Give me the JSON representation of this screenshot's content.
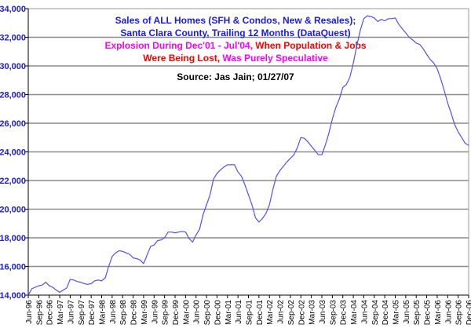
{
  "chart_data": {
    "type": "line",
    "title_lines": [
      [
        {
          "text": "Sales of ALL Homes (SFH & Condos, New & Resales);",
          "color": "#1a1ae6"
        }
      ],
      [
        {
          "text": "Santa Clara County, Trailing 12 Months (DataQuest)",
          "color": "#1a1ae6"
        }
      ],
      [
        {
          "text": "Explosion During Dec'01 - Jul'04, ",
          "color": "#ff00ff"
        },
        {
          "text": "When Population & Jobs",
          "color": "#ff0000"
        }
      ],
      [
        {
          "text": "Were Being Lost, ",
          "color": "#ff0000"
        },
        {
          "text": "Was Purely Speculative",
          "color": "#ff00ff"
        }
      ],
      [
        {
          "text": "Source: Jas Jain; 01/27/07",
          "color": "#000000"
        }
      ]
    ],
    "xlabel": "",
    "ylabel": "",
    "ylim": [
      14000,
      34000
    ],
    "y_ticks": [
      "14,000",
      "16,000",
      "18,000",
      "20,000",
      "22,000",
      "24,000",
      "26,000",
      "28,000",
      "30,000",
      "32,000",
      "34,000"
    ],
    "x_tick_labels": [
      "Jun-96",
      "Sep-96",
      "Dec-96",
      "Mar-97",
      "Jun-97",
      "Sep-97",
      "Dec-97",
      "Mar-98",
      "Jun-98",
      "Sep-98",
      "Dec-98",
      "Mar-99",
      "Jun-99",
      "Sep-99",
      "Dec-99",
      "Mar-00",
      "Jun-00",
      "Sep-00",
      "Dec-00",
      "Mar-01",
      "Jun-01",
      "Sep-01",
      "Dec-01",
      "Mar-02",
      "Jun-02",
      "Sep-02",
      "Dec-02",
      "Mar-03",
      "Jun-03",
      "Sep-03",
      "Dec-03",
      "Mar-04",
      "Jun-04",
      "Sep-04",
      "Dec-04",
      "Mar-05",
      "Jun-05",
      "Sep-05",
      "Dec-05",
      "Mar-06",
      "Jun-06",
      "Sep-06",
      "Dec-06"
    ],
    "grid": "horizontal",
    "legend": "none",
    "line_color": "#5050ff",
    "series": [
      {
        "x": [
          "Jun-96",
          "Jul-96",
          "Aug-96",
          "Sep-96",
          "Oct-96",
          "Nov-96",
          "Dec-96",
          "Jan-97",
          "Feb-97",
          "Mar-97",
          "Apr-97",
          "May-97",
          "Jun-97",
          "Jul-97",
          "Aug-97",
          "Sep-97",
          "Oct-97",
          "Nov-97",
          "Dec-97",
          "Jan-98",
          "Feb-98",
          "Mar-98",
          "Apr-98",
          "May-98",
          "Jun-98",
          "Jul-98",
          "Aug-98",
          "Sep-98",
          "Oct-98",
          "Nov-98",
          "Dec-98",
          "Jan-99",
          "Feb-99",
          "Mar-99",
          "Apr-99",
          "May-99",
          "Jun-99",
          "Jul-99",
          "Aug-99",
          "Sep-99",
          "Oct-99",
          "Nov-99",
          "Dec-99",
          "Jan-00",
          "Feb-00",
          "Mar-00",
          "Apr-00",
          "May-00",
          "Jun-00",
          "Jul-00",
          "Aug-00",
          "Sep-00",
          "Oct-00",
          "Nov-00",
          "Dec-00",
          "Jan-01",
          "Feb-01",
          "Mar-01",
          "Apr-01",
          "May-01",
          "Jun-01",
          "Jul-01",
          "Aug-01",
          "Sep-01",
          "Oct-01",
          "Nov-01",
          "Dec-01",
          "Jan-02",
          "Feb-02",
          "Mar-02",
          "Apr-02",
          "May-02",
          "Jun-02",
          "Jul-02",
          "Aug-02",
          "Sep-02",
          "Oct-02",
          "Nov-02",
          "Dec-02",
          "Jan-03",
          "Feb-03",
          "Mar-03",
          "Apr-03",
          "May-03",
          "Jun-03",
          "Jul-03",
          "Aug-03",
          "Sep-03",
          "Oct-03",
          "Nov-03",
          "Dec-03",
          "Jan-04",
          "Feb-04",
          "Mar-04",
          "Apr-04",
          "May-04",
          "Jun-04",
          "Jul-04",
          "Aug-04",
          "Sep-04",
          "Oct-04",
          "Nov-04",
          "Dec-04",
          "Jan-05",
          "Feb-05",
          "Mar-05",
          "Apr-05",
          "May-05",
          "Jun-05",
          "Jul-05",
          "Aug-05",
          "Sep-05",
          "Oct-05",
          "Nov-05",
          "Dec-05",
          "Jan-06",
          "Feb-06",
          "Mar-06",
          "Apr-06",
          "May-06",
          "Jun-06",
          "Jul-06",
          "Aug-06",
          "Sep-06",
          "Oct-06",
          "Nov-06",
          "Dec-06"
        ],
        "values": [
          14000,
          14450,
          14550,
          14650,
          14700,
          14900,
          14650,
          14550,
          14350,
          14200,
          14350,
          14500,
          15100,
          15050,
          14950,
          14900,
          14800,
          14750,
          14800,
          15000,
          15050,
          15000,
          15200,
          16000,
          16700,
          16950,
          17100,
          17050,
          16950,
          16850,
          16600,
          16550,
          16450,
          16200,
          16800,
          17400,
          17500,
          17800,
          17850,
          18000,
          18400,
          18400,
          18350,
          18400,
          18450,
          18400,
          17950,
          17700,
          18200,
          18600,
          19600,
          20300,
          21000,
          22100,
          22500,
          22750,
          22950,
          23100,
          23100,
          23100,
          22600,
          22300,
          21700,
          21000,
          20300,
          19400,
          19100,
          19350,
          19700,
          20300,
          21400,
          22300,
          22700,
          23000,
          23300,
          23550,
          23800,
          24300,
          25000,
          24950,
          24700,
          24400,
          24100,
          23800,
          23800,
          24500,
          25300,
          26300,
          27100,
          27700,
          28500,
          28700,
          29200,
          30200,
          31400,
          32500,
          33300,
          33500,
          33450,
          33350,
          33100,
          33250,
          33150,
          33300,
          33300,
          33350,
          32900,
          32600,
          32300,
          32000,
          31800,
          31600,
          31500,
          31200,
          30800,
          30450,
          30200,
          29800,
          29100,
          28300,
          27400,
          26700,
          25900,
          25400,
          25000,
          24600,
          24450
        ]
      }
    ]
  }
}
